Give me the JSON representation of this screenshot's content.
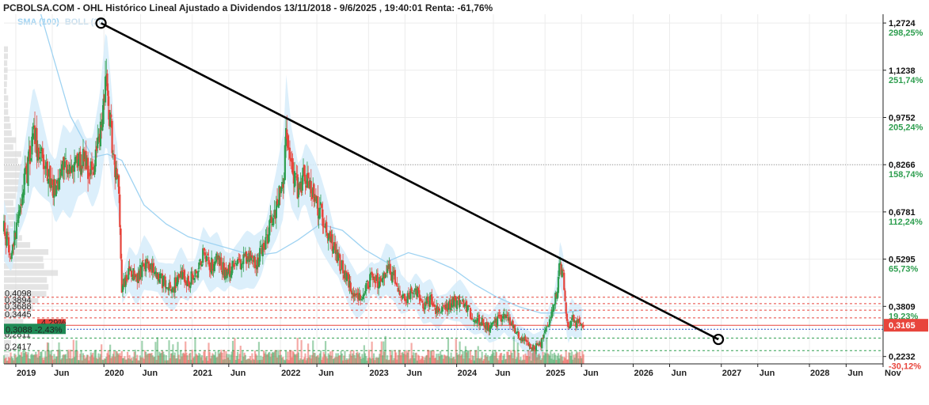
{
  "header": {
    "title": "PCBOLSA.COM - OHL Histórico Lineal Ajustado a Dividendos 13/11/2018 - 9/6/2025 , 19:40:01 Renta: -61,76%"
  },
  "legend": {
    "sma": "SMA (100)",
    "boll": "BOLL (20)"
  },
  "colors": {
    "up": "#2e9e4f",
    "down": "#e8453c",
    "band": "#d6ecfa",
    "sma_line": "#9fd3f2",
    "resistance": "#e8453c",
    "support": "#2e9e4f",
    "price_badge": "#e8453c",
    "trend": "#000000"
  },
  "chart_data": {
    "type": "candlestick",
    "title": "PCBOLSA.COM - OHL Histórico Lineal Ajustado a Dividendos 13/11/2018 - 9/6/2025 , 19:40:01 Renta: -61,76%",
    "x_range": [
      "2018-11-13",
      "2028-11-01"
    ],
    "data_range": [
      "2018-11-13",
      "2025-06-09"
    ],
    "x_ticks": [
      "2019",
      "Jun",
      "2020",
      "Jun",
      "2021",
      "Jun",
      "2022",
      "Jun",
      "2023",
      "Jun",
      "2024",
      "Jun",
      "2025",
      "Jun",
      "2026",
      "Jun",
      "2027",
      "Jun",
      "2028",
      "Jun",
      "Nov"
    ],
    "ylim": [
      0.2,
      1.3
    ],
    "y_ticks": [
      {
        "value": 1.2724,
        "label": "1,2724",
        "pct": "298,25%"
      },
      {
        "value": 1.1238,
        "label": "1,1238",
        "pct": "251,74%"
      },
      {
        "value": 0.9752,
        "label": "0,9752",
        "pct": "205,24%"
      },
      {
        "value": 0.8266,
        "label": "0,8266",
        "pct": "158,74%"
      },
      {
        "value": 0.6781,
        "label": "0,6781",
        "pct": "112,24%"
      },
      {
        "value": 0.5295,
        "label": "0,5295",
        "pct": "65,73%"
      },
      {
        "value": 0.3809,
        "label": "0,3809",
        "pct": "19,23%"
      },
      {
        "value": 0.2232,
        "label": "0,2232",
        "pct": "-30,12%"
      }
    ],
    "last_price": {
      "value": 0.3165,
      "label": "0,3165"
    },
    "resistance_levels": [
      {
        "value": 0.4098,
        "label": "0,4098"
      },
      {
        "value": 0.3894,
        "label": "0,3894"
      },
      {
        "value": 0.3688,
        "label": "0,3688"
      },
      {
        "value": 0.3445,
        "label": "0,3445"
      }
    ],
    "current_level": {
      "value": 0.3088,
      "label": "0,3088",
      "change": "-2,43%"
    },
    "extra_change_label": "4,29%",
    "support_levels": [
      {
        "value": 0.2811,
        "label": "0,2811"
      },
      {
        "value": 0.2417,
        "label": "0,2417"
      }
    ],
    "trendline": {
      "start": [
        "2019-12-20",
        1.272
      ],
      "end": [
        "2026-12-20",
        0.277
      ]
    },
    "price_path": [
      [
        "2018-11-13",
        0.62
      ],
      [
        "2018-12-15",
        0.55
      ],
      [
        "2019-01-15",
        0.7
      ],
      [
        "2019-02-15",
        0.8
      ],
      [
        "2019-03-15",
        0.92
      ],
      [
        "2019-04-15",
        0.86
      ],
      [
        "2019-05-15",
        0.8
      ],
      [
        "2019-06-15",
        0.74
      ],
      [
        "2019-07-15",
        0.82
      ],
      [
        "2019-08-15",
        0.79
      ],
      [
        "2019-09-15",
        0.85
      ],
      [
        "2019-10-15",
        0.83
      ],
      [
        "2019-11-15",
        0.8
      ],
      [
        "2019-12-15",
        0.9
      ],
      [
        "2020-01-10",
        1.08
      ],
      [
        "2020-01-25",
        0.98
      ],
      [
        "2020-02-15",
        0.82
      ],
      [
        "2020-03-01",
        0.78
      ],
      [
        "2020-03-15",
        0.43
      ],
      [
        "2020-04-15",
        0.5
      ],
      [
        "2020-05-15",
        0.46
      ],
      [
        "2020-06-15",
        0.52
      ],
      [
        "2020-07-15",
        0.5
      ],
      [
        "2020-08-15",
        0.47
      ],
      [
        "2020-09-15",
        0.45
      ],
      [
        "2020-10-15",
        0.44
      ],
      [
        "2020-11-15",
        0.49
      ],
      [
        "2020-12-15",
        0.46
      ],
      [
        "2021-01-15",
        0.48
      ],
      [
        "2021-02-15",
        0.55
      ],
      [
        "2021-03-15",
        0.51
      ],
      [
        "2021-04-15",
        0.53
      ],
      [
        "2021-05-15",
        0.49
      ],
      [
        "2021-06-15",
        0.5
      ],
      [
        "2021-07-15",
        0.51
      ],
      [
        "2021-08-15",
        0.53
      ],
      [
        "2021-09-15",
        0.52
      ],
      [
        "2021-10-15",
        0.55
      ],
      [
        "2021-11-15",
        0.62
      ],
      [
        "2021-12-15",
        0.7
      ],
      [
        "2022-01-15",
        0.8
      ],
      [
        "2022-01-25",
        0.95
      ],
      [
        "2022-02-15",
        0.82
      ],
      [
        "2022-03-15",
        0.74
      ],
      [
        "2022-04-15",
        0.8
      ],
      [
        "2022-05-15",
        0.74
      ],
      [
        "2022-06-15",
        0.68
      ],
      [
        "2022-07-15",
        0.62
      ],
      [
        "2022-08-15",
        0.55
      ],
      [
        "2022-09-15",
        0.5
      ],
      [
        "2022-10-15",
        0.45
      ],
      [
        "2022-11-15",
        0.41
      ],
      [
        "2022-12-15",
        0.43
      ],
      [
        "2023-01-15",
        0.47
      ],
      [
        "2023-02-15",
        0.46
      ],
      [
        "2023-03-15",
        0.5
      ],
      [
        "2023-04-15",
        0.48
      ],
      [
        "2023-05-15",
        0.42
      ],
      [
        "2023-06-15",
        0.41
      ],
      [
        "2023-07-15",
        0.43
      ],
      [
        "2023-08-15",
        0.39
      ],
      [
        "2023-09-15",
        0.4
      ],
      [
        "2023-10-15",
        0.36
      ],
      [
        "2023-11-15",
        0.38
      ],
      [
        "2023-12-15",
        0.39
      ],
      [
        "2024-01-15",
        0.4
      ],
      [
        "2024-02-15",
        0.37
      ],
      [
        "2024-03-15",
        0.34
      ],
      [
        "2024-04-15",
        0.33
      ],
      [
        "2024-05-15",
        0.31
      ],
      [
        "2024-06-15",
        0.33
      ],
      [
        "2024-07-15",
        0.36
      ],
      [
        "2024-08-15",
        0.32
      ],
      [
        "2024-09-15",
        0.29
      ],
      [
        "2024-10-15",
        0.27
      ],
      [
        "2024-11-15",
        0.25
      ],
      [
        "2024-12-15",
        0.26
      ],
      [
        "2025-01-15",
        0.33
      ],
      [
        "2025-02-15",
        0.41
      ],
      [
        "2025-03-05",
        0.52
      ],
      [
        "2025-03-20",
        0.46
      ],
      [
        "2025-04-05",
        0.31
      ],
      [
        "2025-04-20",
        0.35
      ],
      [
        "2025-05-10",
        0.33
      ],
      [
        "2025-05-25",
        0.34
      ],
      [
        "2025-06-09",
        0.3165
      ]
    ],
    "sma_path": [
      [
        "2019-04-15",
        1.3
      ],
      [
        "2019-08-15",
        0.98
      ],
      [
        "2019-11-15",
        0.85
      ],
      [
        "2020-01-15",
        0.86
      ],
      [
        "2020-03-15",
        0.84
      ],
      [
        "2020-06-15",
        0.7
      ],
      [
        "2020-09-15",
        0.64
      ],
      [
        "2020-12-15",
        0.6
      ],
      [
        "2021-03-15",
        0.58
      ],
      [
        "2021-06-15",
        0.56
      ],
      [
        "2021-09-15",
        0.54
      ],
      [
        "2021-12-15",
        0.55
      ],
      [
        "2022-03-15",
        0.59
      ],
      [
        "2022-06-15",
        0.64
      ],
      [
        "2022-09-15",
        0.62
      ],
      [
        "2022-12-15",
        0.56
      ],
      [
        "2023-03-15",
        0.52
      ],
      [
        "2023-06-15",
        0.55
      ],
      [
        "2023-09-15",
        0.53
      ],
      [
        "2023-12-15",
        0.5
      ],
      [
        "2024-03-15",
        0.45
      ],
      [
        "2024-06-15",
        0.41
      ],
      [
        "2024-09-15",
        0.38
      ],
      [
        "2024-12-15",
        0.36
      ],
      [
        "2025-03-15",
        0.36
      ],
      [
        "2025-06-09",
        0.37
      ]
    ]
  }
}
